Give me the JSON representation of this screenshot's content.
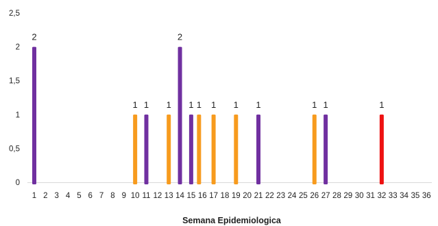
{
  "chart_data": {
    "type": "bar",
    "title": "",
    "xlabel": "Semana Epidemiologica",
    "ylabel": "",
    "ylim": [
      0,
      2.5
    ],
    "y_ticks": [
      "0",
      "0,5",
      "1",
      "1,5",
      "2",
      "2,5"
    ],
    "categories": [
      "1",
      "2",
      "3",
      "4",
      "5",
      "6",
      "7",
      "8",
      "9",
      "10",
      "11",
      "12",
      "13",
      "14",
      "15",
      "16",
      "17",
      "18",
      "19",
      "20",
      "21",
      "22",
      "23",
      "24",
      "25",
      "26",
      "27",
      "28",
      "29",
      "30",
      "31",
      "32",
      "33",
      "34",
      "35",
      "36"
    ],
    "bars": [
      {
        "week": "1",
        "offset": 0,
        "value": 2,
        "color": "#7030a0"
      },
      {
        "week": "10",
        "offset": 0,
        "value": 1,
        "color": "#f79b1e"
      },
      {
        "week": "11",
        "offset": 0,
        "value": 1,
        "color": "#7030a0"
      },
      {
        "week": "13",
        "offset": 0,
        "value": 1,
        "color": "#f79b1e"
      },
      {
        "week": "14",
        "offset": 0,
        "value": 2,
        "color": "#7030a0"
      },
      {
        "week": "15",
        "offset": 0,
        "value": 1,
        "color": "#7030a0"
      },
      {
        "week": "16",
        "offset": -0.3,
        "value": 1,
        "color": "#f79b1e"
      },
      {
        "week": "17",
        "offset": 0,
        "value": 1,
        "color": "#f79b1e"
      },
      {
        "week": "19",
        "offset": 0,
        "value": 1,
        "color": "#f79b1e"
      },
      {
        "week": "21",
        "offset": 0,
        "value": 1,
        "color": "#7030a0"
      },
      {
        "week": "26",
        "offset": 0,
        "value": 1,
        "color": "#f79b1e"
      },
      {
        "week": "27",
        "offset": 0,
        "value": 1,
        "color": "#7030a0"
      },
      {
        "week": "32",
        "offset": 0,
        "value": 1,
        "color": "#ee1111"
      }
    ],
    "data_labels": [
      "2",
      "1",
      "1",
      "1",
      "2",
      "1",
      "1",
      "1",
      "1",
      "1",
      "1",
      "1",
      "1"
    ],
    "grid": false,
    "legend": "none",
    "colors": {
      "purple": "#7030a0",
      "orange": "#f79b1e",
      "red": "#ee1111",
      "axis": "#d9d9d9",
      "text": "#222222"
    }
  }
}
